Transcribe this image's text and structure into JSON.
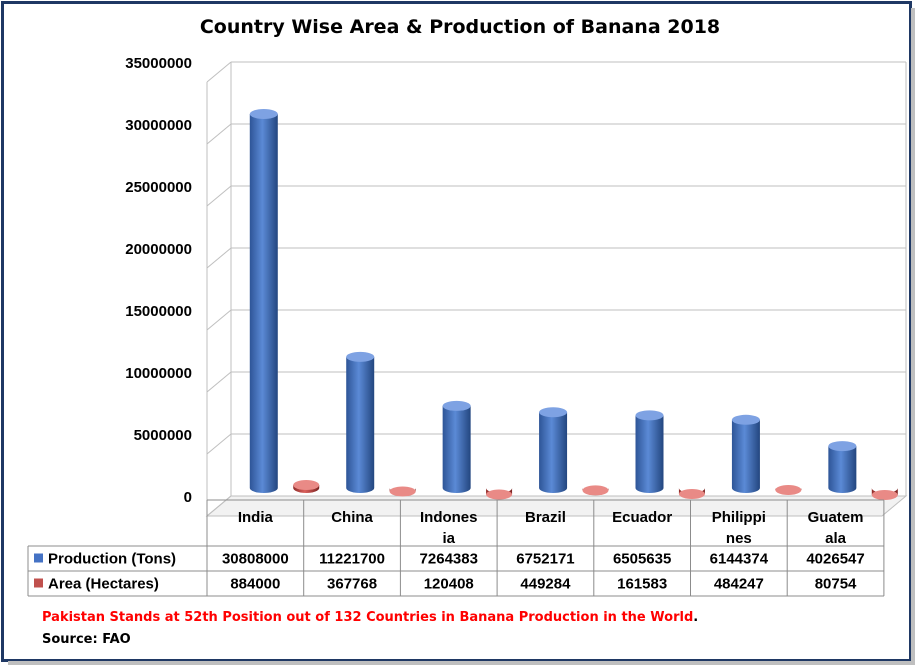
{
  "chart_data": {
    "type": "bar",
    "title": "Country Wise Area & Production of Banana 2018",
    "categories": [
      "India",
      "China",
      "Indonesia",
      "Brazil",
      "Ecuador",
      "Philippines",
      "Guatemala"
    ],
    "category_display": [
      [
        "India"
      ],
      [
        "China"
      ],
      [
        "Indones",
        "ia"
      ],
      [
        "Brazil"
      ],
      [
        "Ecuador"
      ],
      [
        "Philippi",
        "nes"
      ],
      [
        "Guatem",
        "ala"
      ]
    ],
    "series": [
      {
        "name": "Production (Tons)",
        "color": "#4472c4",
        "values": [
          30808000,
          11221700,
          7264383,
          6752171,
          6505635,
          6144374,
          4026547
        ]
      },
      {
        "name": "Area (Hectares)",
        "color": "#c0504d",
        "values": [
          884000,
          367768,
          120408,
          449284,
          161583,
          484247,
          80754
        ]
      }
    ],
    "ylim": [
      0,
      35000000
    ],
    "yticks": [
      "0",
      "5000000",
      "10000000",
      "15000000",
      "20000000",
      "25000000",
      "30000000",
      "35000000"
    ],
    "grid": true,
    "legend_position": "data-table",
    "data_table": true
  },
  "footnote": {
    "main": "Pakistan Stands at 52th Position out of 132 Countries in Banana Production in the World",
    "period": ".",
    "source": "Source: FAO",
    "color": "#ff0000"
  }
}
